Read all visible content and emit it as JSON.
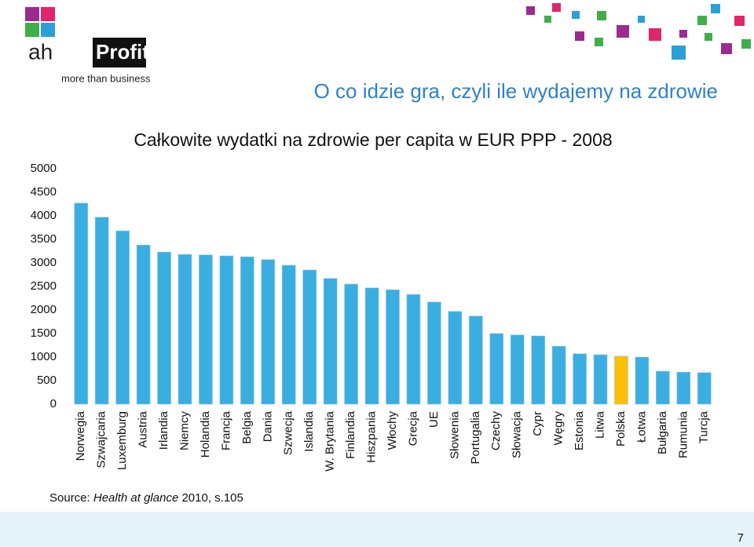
{
  "slide": {
    "logo_ah": "ah",
    "logo_profit": "Profit",
    "tagline": "more than business",
    "heading": "O co idzie gra, czyli ile wydajemy na zdrowie",
    "source": {
      "prefix": "Source: ",
      "work": "Health at glance",
      "suffix": " 2010, s.105"
    },
    "page_number": "7"
  },
  "chart_data": {
    "type": "bar",
    "title": "Całkowite wydatki na zdrowie per capita w EUR PPP - 2008",
    "categories": [
      "Norwegia",
      "Szwajcaria",
      "Luxemburg",
      "Austria",
      "Irlandia",
      "Niemcy",
      "Holandia",
      "Francja",
      "Belgia",
      "Dania",
      "Szwecja",
      "Islandia",
      "W. Brytania",
      "Finlandia",
      "Hiszpania",
      "Włochy",
      "Grecja",
      "UE",
      "Słowenia",
      "Portugalia",
      "Czechy",
      "Słowacja",
      "Cypr",
      "Węgry",
      "Estonia",
      "Litwa",
      "Polska",
      "Łotwa",
      "Bułgaria",
      "Rumunia",
      "Turcja"
    ],
    "values": [
      4270,
      3970,
      3680,
      3380,
      3230,
      3180,
      3170,
      3150,
      3130,
      3070,
      2950,
      2850,
      2670,
      2550,
      2470,
      2430,
      2330,
      2170,
      1970,
      1870,
      1500,
      1470,
      1450,
      1230,
      1070,
      1050,
      1020,
      1000,
      700,
      680,
      670
    ],
    "colors": [
      "#3aaee0",
      "#3aaee0",
      "#3aaee0",
      "#3aaee0",
      "#3aaee0",
      "#3aaee0",
      "#3aaee0",
      "#3aaee0",
      "#3aaee0",
      "#3aaee0",
      "#3aaee0",
      "#3aaee0",
      "#3aaee0",
      "#3aaee0",
      "#3aaee0",
      "#3aaee0",
      "#3aaee0",
      "#3aaee0",
      "#3aaee0",
      "#3aaee0",
      "#3aaee0",
      "#3aaee0",
      "#3aaee0",
      "#3aaee0",
      "#3aaee0",
      "#3aaee0",
      "#ffc000",
      "#3aaee0",
      "#3aaee0",
      "#3aaee0",
      "#3aaee0"
    ],
    "ylim": [
      0,
      5000
    ],
    "yticks": [
      0,
      500,
      1000,
      1500,
      2000,
      2500,
      3000,
      3500,
      4000,
      4500,
      5000
    ],
    "grid": false
  }
}
